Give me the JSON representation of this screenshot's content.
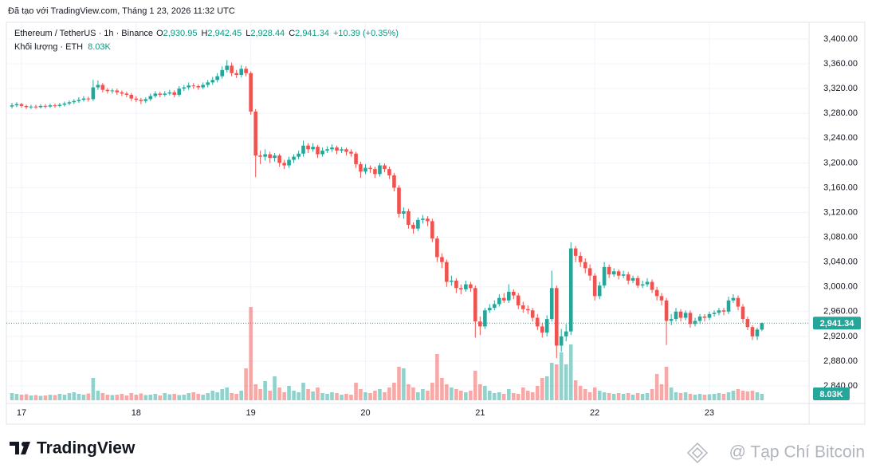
{
  "chart_data": {
    "type": "candlestick",
    "caption": "Đã tạo với TradingView.com, Tháng 1 23, 2026 11:32 UTC",
    "symbol": "Ethereum / TetherUS · 1h · Binance",
    "ohlc_names": [
      "O",
      "H",
      "L",
      "C"
    ],
    "last_labels": [
      "2,930.95",
      "2,942.45",
      "2,928.44",
      "2,941.34"
    ],
    "change_label": "+10.39 (+0.35%)",
    "volume_title": "Khối lượng · ETH",
    "volume_label": "8.03K",
    "up_color": "#26a69a",
    "down_color": "#ef5350",
    "grid": true,
    "logo": "TradingView",
    "watermark": "@ Tạp Chí Bitcoin",
    "xlim": [
      16.882,
      23.848
    ],
    "xticks": [
      17,
      18,
      19,
      20,
      21,
      22,
      23
    ],
    "ylim": [
      2840,
      3400
    ],
    "yticks": [
      {
        "value": 2840,
        "label": "2,840.00"
      },
      {
        "value": 2880,
        "label": "2,880.00"
      },
      {
        "value": 2920,
        "label": "2,920.00"
      },
      {
        "value": 2960,
        "label": "2,960.00"
      },
      {
        "value": 3000,
        "label": "3,000.00"
      },
      {
        "value": 3040,
        "label": "3,040.00"
      },
      {
        "value": 3080,
        "label": "3,080.00"
      },
      {
        "value": 3120,
        "label": "3,120.00"
      },
      {
        "value": 3160,
        "label": "3,160.00"
      },
      {
        "value": 3200,
        "label": "3,200.00"
      },
      {
        "value": 3240,
        "label": "3,240.00"
      },
      {
        "value": 3280,
        "label": "3,280.00"
      },
      {
        "value": 3320,
        "label": "3,320.00"
      },
      {
        "value": 3360,
        "label": "3,360.00"
      },
      {
        "value": 3400,
        "label": "3,400.00"
      }
    ],
    "x": [
      16.917,
      16.958,
      17,
      17.042,
      17.083,
      17.125,
      17.167,
      17.208,
      17.25,
      17.292,
      17.333,
      17.375,
      17.417,
      17.458,
      17.5,
      17.542,
      17.583,
      17.625,
      17.667,
      17.708,
      17.75,
      17.792,
      17.833,
      17.875,
      17.917,
      17.958,
      18,
      18.042,
      18.083,
      18.125,
      18.167,
      18.208,
      18.25,
      18.292,
      18.333,
      18.375,
      18.417,
      18.458,
      18.5,
      18.542,
      18.583,
      18.625,
      18.667,
      18.708,
      18.75,
      18.792,
      18.833,
      18.875,
      18.917,
      18.958,
      19,
      19.042,
      19.083,
      19.125,
      19.167,
      19.208,
      19.25,
      19.292,
      19.333,
      19.375,
      19.417,
      19.458,
      19.5,
      19.542,
      19.583,
      19.625,
      19.667,
      19.708,
      19.75,
      19.792,
      19.833,
      19.875,
      19.917,
      19.958,
      20,
      20.042,
      20.083,
      20.125,
      20.167,
      20.208,
      20.25,
      20.292,
      20.333,
      20.375,
      20.417,
      20.458,
      20.5,
      20.542,
      20.583,
      20.625,
      20.667,
      20.708,
      20.75,
      20.792,
      20.833,
      20.875,
      20.917,
      20.958,
      21,
      21.042,
      21.083,
      21.125,
      21.167,
      21.208,
      21.25,
      21.292,
      21.333,
      21.375,
      21.417,
      21.458,
      21.5,
      21.542,
      21.583,
      21.625,
      21.667,
      21.708,
      21.75,
      21.792,
      21.833,
      21.875,
      21.917,
      21.958,
      22,
      22.042,
      22.083,
      22.125,
      22.167,
      22.208,
      22.25,
      22.292,
      22.333,
      22.375,
      22.417,
      22.458,
      22.5,
      22.542,
      22.583,
      22.625,
      22.667,
      22.708,
      22.75,
      22.792,
      22.833,
      22.875,
      22.917,
      22.958,
      23,
      23.042,
      23.083,
      23.125,
      23.167,
      23.208,
      23.25,
      23.292,
      23.333,
      23.375,
      23.417,
      23.458
    ],
    "candles": [
      [
        3291,
        3297,
        3288,
        3293
      ],
      [
        3293,
        3298,
        3290,
        3295
      ],
      [
        3295,
        3297,
        3289,
        3292
      ],
      [
        3292,
        3294,
        3287,
        3290
      ],
      [
        3290,
        3294,
        3287,
        3291
      ],
      [
        3291,
        3294,
        3287,
        3290
      ],
      [
        3290,
        3295,
        3288,
        3292
      ],
      [
        3292,
        3295,
        3288,
        3291
      ],
      [
        3291,
        3296,
        3289,
        3293
      ],
      [
        3293,
        3296,
        3289,
        3292
      ],
      [
        3292,
        3297,
        3290,
        3294
      ],
      [
        3294,
        3299,
        3291,
        3296
      ],
      [
        3296,
        3301,
        3293,
        3298
      ],
      [
        3298,
        3303,
        3295,
        3300
      ],
      [
        3300,
        3306,
        3297,
        3302
      ],
      [
        3302,
        3308,
        3299,
        3304
      ],
      [
        3304,
        3307,
        3299,
        3303
      ],
      [
        3303,
        3334,
        3300,
        3322
      ],
      [
        3322,
        3333,
        3318,
        3326
      ],
      [
        3326,
        3329,
        3314,
        3318
      ],
      [
        3318,
        3321,
        3312,
        3316
      ],
      [
        3316,
        3320,
        3312,
        3317
      ],
      [
        3317,
        3320,
        3310,
        3314
      ],
      [
        3314,
        3317,
        3308,
        3312
      ],
      [
        3312,
        3315,
        3306,
        3310
      ],
      [
        3310,
        3313,
        3300,
        3304
      ],
      [
        3304,
        3308,
        3298,
        3302
      ],
      [
        3302,
        3305,
        3295,
        3300
      ],
      [
        3300,
        3306,
        3297,
        3303
      ],
      [
        3303,
        3312,
        3300,
        3308
      ],
      [
        3308,
        3316,
        3305,
        3312
      ],
      [
        3312,
        3315,
        3306,
        3310
      ],
      [
        3310,
        3316,
        3307,
        3312
      ],
      [
        3312,
        3318,
        3309,
        3314
      ],
      [
        3314,
        3317,
        3306,
        3310
      ],
      [
        3310,
        3324,
        3307,
        3320
      ],
      [
        3320,
        3326,
        3316,
        3322
      ],
      [
        3322,
        3330,
        3318,
        3325
      ],
      [
        3325,
        3329,
        3320,
        3324
      ],
      [
        3324,
        3327,
        3318,
        3322
      ],
      [
        3322,
        3330,
        3319,
        3326
      ],
      [
        3326,
        3334,
        3322,
        3330
      ],
      [
        3330,
        3339,
        3326,
        3334
      ],
      [
        3334,
        3345,
        3330,
        3340
      ],
      [
        3340,
        3356,
        3336,
        3350
      ],
      [
        3350,
        3366,
        3346,
        3357
      ],
      [
        3357,
        3362,
        3340,
        3345
      ],
      [
        3345,
        3350,
        3337,
        3342
      ],
      [
        3342,
        3358,
        3338,
        3352
      ],
      [
        3352,
        3356,
        3340,
        3345
      ],
      [
        3345,
        3348,
        3278,
        3283
      ],
      [
        3283,
        3287,
        3177,
        3212
      ],
      [
        3212,
        3220,
        3198,
        3210
      ],
      [
        3210,
        3222,
        3204,
        3214
      ],
      [
        3214,
        3218,
        3200,
        3208
      ],
      [
        3208,
        3216,
        3202,
        3212
      ],
      [
        3212,
        3215,
        3194,
        3200
      ],
      [
        3200,
        3205,
        3190,
        3196
      ],
      [
        3196,
        3210,
        3192,
        3205
      ],
      [
        3205,
        3214,
        3200,
        3210
      ],
      [
        3210,
        3220,
        3206,
        3215
      ],
      [
        3215,
        3236,
        3210,
        3228
      ],
      [
        3228,
        3232,
        3216,
        3222
      ],
      [
        3222,
        3232,
        3218,
        3226
      ],
      [
        3226,
        3229,
        3208,
        3214
      ],
      [
        3214,
        3225,
        3210,
        3220
      ],
      [
        3220,
        3227,
        3216,
        3222
      ],
      [
        3222,
        3230,
        3218,
        3225
      ],
      [
        3225,
        3228,
        3214,
        3220
      ],
      [
        3220,
        3226,
        3216,
        3222
      ],
      [
        3222,
        3225,
        3212,
        3218
      ],
      [
        3218,
        3222,
        3210,
        3215
      ],
      [
        3215,
        3218,
        3192,
        3198
      ],
      [
        3198,
        3202,
        3176,
        3186
      ],
      [
        3186,
        3198,
        3182,
        3192
      ],
      [
        3192,
        3196,
        3184,
        3190
      ],
      [
        3190,
        3194,
        3176,
        3182
      ],
      [
        3182,
        3200,
        3178,
        3196
      ],
      [
        3196,
        3199,
        3185,
        3190
      ],
      [
        3190,
        3194,
        3174,
        3180
      ],
      [
        3180,
        3184,
        3154,
        3160
      ],
      [
        3160,
        3164,
        3112,
        3118
      ],
      [
        3118,
        3128,
        3110,
        3122
      ],
      [
        3122,
        3126,
        3094,
        3100
      ],
      [
        3100,
        3104,
        3086,
        3094
      ],
      [
        3094,
        3112,
        3090,
        3108
      ],
      [
        3108,
        3116,
        3102,
        3110
      ],
      [
        3110,
        3114,
        3098,
        3106
      ],
      [
        3106,
        3110,
        3072,
        3078
      ],
      [
        3078,
        3082,
        3040,
        3048
      ],
      [
        3048,
        3054,
        3030,
        3040
      ],
      [
        3040,
        3044,
        3000,
        3008
      ],
      [
        3008,
        3018,
        3002,
        3010
      ],
      [
        3010,
        3014,
        2990,
        2998
      ],
      [
        2998,
        3004,
        2988,
        2996
      ],
      [
        2996,
        3010,
        2992,
        3004
      ],
      [
        3004,
        3008,
        2992,
        2998
      ],
      [
        2998,
        3002,
        2918,
        2944
      ],
      [
        2944,
        2952,
        2922,
        2936
      ],
      [
        2936,
        2966,
        2932,
        2962
      ],
      [
        2962,
        2972,
        2958,
        2966
      ],
      [
        2966,
        2978,
        2962,
        2972
      ],
      [
        2972,
        2988,
        2968,
        2982
      ],
      [
        2982,
        2990,
        2974,
        2978
      ],
      [
        2978,
        3004,
        2974,
        2992
      ],
      [
        2992,
        2996,
        2980,
        2986
      ],
      [
        2986,
        2990,
        2964,
        2970
      ],
      [
        2970,
        2976,
        2958,
        2964
      ],
      [
        2964,
        2970,
        2956,
        2962
      ],
      [
        2962,
        2966,
        2944,
        2950
      ],
      [
        2950,
        2956,
        2930,
        2936
      ],
      [
        2936,
        2942,
        2918,
        2926
      ],
      [
        2926,
        2954,
        2920,
        2948
      ],
      [
        2948,
        3026,
        2944,
        2998
      ],
      [
        2998,
        3002,
        2885,
        2905
      ],
      [
        2905,
        2932,
        2895,
        2920
      ],
      [
        2920,
        2940,
        2912,
        2928
      ],
      [
        2928,
        3072,
        2922,
        3062
      ],
      [
        3062,
        3066,
        3040,
        3050
      ],
      [
        3050,
        3056,
        3032,
        3040
      ],
      [
        3040,
        3046,
        3022,
        3030
      ],
      [
        3030,
        3036,
        3010,
        3018
      ],
      [
        3018,
        3022,
        2978,
        2985
      ],
      [
        2985,
        3008,
        2980,
        3002
      ],
      [
        3002,
        3040,
        2998,
        3032
      ],
      [
        3032,
        3036,
        3014,
        3020
      ],
      [
        3020,
        3030,
        3016,
        3025
      ],
      [
        3025,
        3028,
        3012,
        3018
      ],
      [
        3018,
        3026,
        3014,
        3020
      ],
      [
        3020,
        3024,
        3004,
        3010
      ],
      [
        3010,
        3018,
        3006,
        3014
      ],
      [
        3014,
        3018,
        2998,
        3002
      ],
      [
        3002,
        3010,
        2998,
        3004
      ],
      [
        3004,
        3014,
        3000,
        3008
      ],
      [
        3008,
        3012,
        2990,
        2995
      ],
      [
        2995,
        3000,
        2978,
        2985
      ],
      [
        2985,
        2990,
        2970,
        2978
      ],
      [
        2978,
        2982,
        2906,
        2945
      ],
      [
        2945,
        2956,
        2938,
        2948
      ],
      [
        2948,
        2966,
        2944,
        2960
      ],
      [
        2960,
        2964,
        2944,
        2950
      ],
      [
        2950,
        2962,
        2946,
        2958
      ],
      [
        2958,
        2962,
        2934,
        2940
      ],
      [
        2940,
        2950,
        2936,
        2945
      ],
      [
        2945,
        2956,
        2940,
        2952
      ],
      [
        2952,
        2956,
        2944,
        2950
      ],
      [
        2950,
        2960,
        2946,
        2956
      ],
      [
        2956,
        2962,
        2952,
        2958
      ],
      [
        2958,
        2966,
        2954,
        2962
      ],
      [
        2962,
        2966,
        2954,
        2960
      ],
      [
        2960,
        2984,
        2956,
        2978
      ],
      [
        2978,
        2988,
        2974,
        2982
      ],
      [
        2982,
        2986,
        2962,
        2968
      ],
      [
        2968,
        2972,
        2942,
        2948
      ],
      [
        2948,
        2952,
        2930,
        2935
      ],
      [
        2935,
        2938,
        2914,
        2920
      ],
      [
        2920,
        2934,
        2914,
        2930.95
      ],
      [
        2930.95,
        2942.45,
        2928.44,
        2941.34
      ]
    ],
    "volume": [
      9000,
      8000,
      7000,
      7500,
      6000,
      6500,
      5500,
      6000,
      7000,
      6500,
      8000,
      7000,
      9000,
      10000,
      8000,
      7000,
      8500,
      28000,
      12000,
      9000,
      7000,
      6500,
      7000,
      8000,
      6000,
      9000,
      7000,
      8500,
      6500,
      7000,
      8000,
      6000,
      9000,
      7500,
      8000,
      6500,
      7000,
      9000,
      10000,
      8000,
      7000,
      9000,
      12000,
      10000,
      14000,
      16000,
      9000,
      8000,
      12000,
      40000,
      117000,
      20000,
      14000,
      24000,
      12000,
      30000,
      16000,
      10000,
      18000,
      12000,
      10000,
      22000,
      14000,
      11000,
      16000,
      9000,
      8000,
      10000,
      9000,
      7000,
      8000,
      7000,
      22000,
      14000,
      10000,
      9000,
      12000,
      14000,
      10000,
      16000,
      22000,
      42000,
      40000,
      20000,
      16000,
      10000,
      14000,
      12000,
      22000,
      58000,
      28000,
      20000,
      16000,
      14000,
      12000,
      10000,
      12000,
      37000,
      20000,
      18000,
      12000,
      9000,
      10000,
      8000,
      14000,
      9000,
      8000,
      16000,
      12000,
      10000,
      18000,
      28000,
      30000,
      47000,
      45000,
      60000,
      45000,
      70000,
      25000,
      18000,
      14000,
      10000,
      16000,
      12000,
      10000,
      9000,
      8000,
      9000,
      8000,
      9000,
      7000,
      9000,
      8000,
      9000,
      14000,
      33000,
      20000,
      42000,
      16000,
      10000,
      9000,
      10000,
      8000,
      7000,
      8000,
      7000,
      7500,
      8000,
      9000,
      8000,
      10000,
      12000,
      14000,
      12000,
      11000,
      12000,
      10000,
      8030
    ],
    "value_labels_volume_last": "8.03K"
  }
}
